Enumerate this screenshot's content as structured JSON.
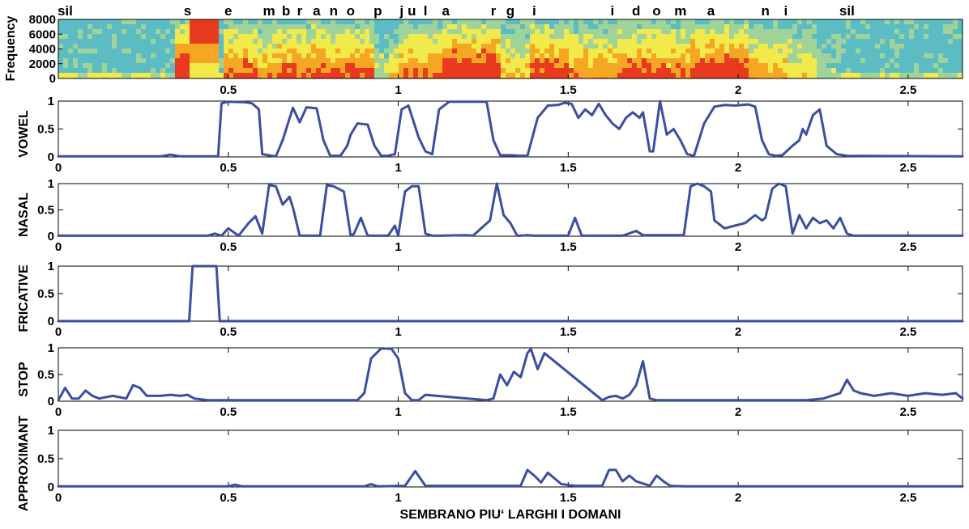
{
  "chart_data": [
    {
      "type": "heatmap",
      "ylabel": "Frequency",
      "ylim": [
        0,
        8000
      ],
      "yticks": [
        "0",
        "2000",
        "4000",
        "6000",
        "8000"
      ],
      "xlim": [
        0,
        2.66
      ],
      "xticks": [
        "0.5",
        "1",
        "1.5",
        "2",
        "2.5"
      ],
      "xtick_values": [
        0.5,
        1,
        1.5,
        2,
        2.5
      ],
      "phoneme_labels": [
        {
          "text": "sil",
          "t": 0.02
        },
        {
          "text": "s",
          "t": 0.38
        },
        {
          "text": "e",
          "t": 0.5
        },
        {
          "text": "m",
          "t": 0.62
        },
        {
          "text": "b",
          "t": 0.67
        },
        {
          "text": "r",
          "t": 0.71
        },
        {
          "text": "a",
          "t": 0.76
        },
        {
          "text": "n",
          "t": 0.81
        },
        {
          "text": "o",
          "t": 0.86
        },
        {
          "text": "p",
          "t": 0.94
        },
        {
          "text": "j",
          "t": 1.01
        },
        {
          "text": "u",
          "t": 1.04
        },
        {
          "text": "l",
          "t": 1.08
        },
        {
          "text": "a",
          "t": 1.14
        },
        {
          "text": "r",
          "t": 1.28
        },
        {
          "text": "g",
          "t": 1.33
        },
        {
          "text": "i",
          "t": 1.4
        },
        {
          "text": "i",
          "t": 1.63
        },
        {
          "text": "d",
          "t": 1.7
        },
        {
          "text": "o",
          "t": 1.76
        },
        {
          "text": "m",
          "t": 1.83
        },
        {
          "text": "a",
          "t": 1.92
        },
        {
          "text": "n",
          "t": 2.08
        },
        {
          "text": "i",
          "t": 2.14
        },
        {
          "text": "sil",
          "t": 2.32
        }
      ],
      "colors": {
        "low": "#5bbcc4",
        "mid": "#f2ea4a",
        "high": "#e83a1e"
      }
    },
    {
      "type": "line",
      "ylabel": "VOWEL",
      "ylim": [
        0,
        1
      ],
      "xlim": [
        0,
        2.66
      ],
      "yticks": [
        "0",
        "0.5",
        "1"
      ],
      "xticks": [
        "0",
        "0.5",
        "1",
        "1.5",
        "2",
        "2.5"
      ],
      "x": [
        0,
        0.3,
        0.33,
        0.36,
        0.47,
        0.48,
        0.5,
        0.55,
        0.57,
        0.59,
        0.6,
        0.64,
        0.66,
        0.69,
        0.71,
        0.73,
        0.76,
        0.78,
        0.8,
        0.83,
        0.85,
        0.86,
        0.88,
        0.91,
        0.93,
        0.95,
        0.97,
        0.99,
        1.01,
        1.03,
        1.06,
        1.08,
        1.1,
        1.12,
        1.15,
        1.2,
        1.26,
        1.28,
        1.3,
        1.33,
        1.36,
        1.38,
        1.41,
        1.44,
        1.47,
        1.49,
        1.51,
        1.53,
        1.55,
        1.57,
        1.59,
        1.61,
        1.63,
        1.65,
        1.67,
        1.69,
        1.71,
        1.72,
        1.74,
        1.75,
        1.77,
        1.79,
        1.81,
        1.83,
        1.85,
        1.87,
        1.9,
        1.93,
        1.96,
        1.99,
        2.03,
        2.05,
        2.07,
        2.09,
        2.11,
        2.13,
        2.16,
        2.18,
        2.19,
        2.2,
        2.22,
        2.24,
        2.26,
        2.29,
        2.32,
        2.66
      ],
      "values": [
        0.01,
        0.01,
        0.04,
        0.01,
        0.01,
        0.96,
        0.99,
        0.98,
        0.96,
        0.85,
        0.05,
        0.01,
        0.3,
        0.88,
        0.62,
        0.89,
        0.87,
        0.3,
        0.02,
        0.02,
        0.2,
        0.4,
        0.6,
        0.58,
        0.2,
        0.02,
        0.02,
        0.05,
        0.85,
        0.92,
        0.35,
        0.1,
        0.05,
        0.85,
        0.99,
        0.99,
        0.99,
        0.3,
        0.03,
        0.03,
        0.02,
        0.02,
        0.7,
        0.92,
        0.93,
        0.97,
        0.95,
        0.7,
        0.85,
        0.75,
        0.95,
        0.75,
        0.6,
        0.5,
        0.7,
        0.8,
        0.7,
        0.8,
        0.1,
        0.1,
        1.0,
        0.4,
        0.5,
        0.3,
        0.05,
        0.02,
        0.6,
        0.9,
        0.93,
        0.92,
        0.94,
        0.9,
        0.3,
        0.05,
        0.02,
        0.03,
        0.2,
        0.3,
        0.5,
        0.4,
        0.75,
        0.85,
        0.2,
        0.05,
        0.02,
        0.01
      ]
    },
    {
      "type": "line",
      "ylabel": "NASAL",
      "ylim": [
        0,
        1
      ],
      "xlim": [
        0,
        2.66
      ],
      "yticks": [
        "0",
        "0.5",
        "1"
      ],
      "xticks": [
        "0",
        "0.5",
        "1",
        "1.5",
        "2",
        "2.5"
      ],
      "x": [
        0,
        0.44,
        0.46,
        0.48,
        0.5,
        0.53,
        0.56,
        0.58,
        0.6,
        0.62,
        0.64,
        0.66,
        0.68,
        0.69,
        0.71,
        0.77,
        0.79,
        0.81,
        0.84,
        0.86,
        0.87,
        0.89,
        0.91,
        0.97,
        0.99,
        1.0,
        1.02,
        1.04,
        1.06,
        1.08,
        1.1,
        1.12,
        1.2,
        1.22,
        1.27,
        1.29,
        1.31,
        1.33,
        1.35,
        1.36,
        1.38,
        1.4,
        1.5,
        1.52,
        1.54,
        1.66,
        1.7,
        1.72,
        1.84,
        1.86,
        1.88,
        1.9,
        1.92,
        1.93,
        1.96,
        1.99,
        2.02,
        2.05,
        2.07,
        2.08,
        2.1,
        2.12,
        2.14,
        2.16,
        2.18,
        2.2,
        2.22,
        2.24,
        2.26,
        2.28,
        2.3,
        2.32,
        2.34,
        2.66
      ],
      "values": [
        0.01,
        0.01,
        0.05,
        0.01,
        0.15,
        0.01,
        0.25,
        0.38,
        0.05,
        0.97,
        0.95,
        0.6,
        0.75,
        0.55,
        0.01,
        0.01,
        0.97,
        0.95,
        0.85,
        0.01,
        0.05,
        0.35,
        0.01,
        0.01,
        0.2,
        0.01,
        0.85,
        0.95,
        0.95,
        0.05,
        0.01,
        0.01,
        0.02,
        0.01,
        0.3,
        1.0,
        0.4,
        0.25,
        0.01,
        0.01,
        0.02,
        0.01,
        0.01,
        0.35,
        0.01,
        0.01,
        0.1,
        0.02,
        0.02,
        0.95,
        1.0,
        0.95,
        0.85,
        0.3,
        0.15,
        0.2,
        0.25,
        0.4,
        0.3,
        0.35,
        0.9,
        1.0,
        0.95,
        0.05,
        0.4,
        0.15,
        0.35,
        0.25,
        0.3,
        0.15,
        0.35,
        0.05,
        0.01,
        0.01
      ]
    },
    {
      "type": "line",
      "ylabel": "FRICATIVE",
      "ylim": [
        0,
        1
      ],
      "xlim": [
        0,
        2.66
      ],
      "yticks": [
        "0",
        "0.5",
        "1"
      ],
      "xticks": [
        "0",
        "0.5",
        "1",
        "1.5",
        "2",
        "2.5"
      ],
      "x": [
        0,
        0.385,
        0.395,
        0.465,
        0.475,
        2.66
      ],
      "values": [
        0.0,
        0.0,
        1.0,
        1.0,
        0.0,
        0.0
      ]
    },
    {
      "type": "line",
      "ylabel": "STOP",
      "ylim": [
        0,
        1
      ],
      "xlim": [
        0,
        2.66
      ],
      "yticks": [
        "0",
        "0.5",
        "1"
      ],
      "xticks": [
        "0",
        "0.5",
        "1",
        "1.5",
        "2",
        "2.5"
      ],
      "x": [
        0,
        0.02,
        0.04,
        0.06,
        0.08,
        0.1,
        0.12,
        0.16,
        0.2,
        0.22,
        0.24,
        0.26,
        0.3,
        0.33,
        0.36,
        0.38,
        0.4,
        0.44,
        0.88,
        0.9,
        0.92,
        0.95,
        0.98,
        1.0,
        1.02,
        1.04,
        1.06,
        1.08,
        1.26,
        1.28,
        1.3,
        1.32,
        1.34,
        1.36,
        1.38,
        1.39,
        1.41,
        1.43,
        1.6,
        1.62,
        1.64,
        1.66,
        1.68,
        1.7,
        1.72,
        1.74,
        1.76,
        2.2,
        2.25,
        2.3,
        2.32,
        2.34,
        2.36,
        2.4,
        2.45,
        2.5,
        2.55,
        2.6,
        2.64,
        2.66
      ],
      "values": [
        0.02,
        0.25,
        0.05,
        0.05,
        0.2,
        0.1,
        0.05,
        0.1,
        0.05,
        0.3,
        0.25,
        0.1,
        0.1,
        0.12,
        0.1,
        0.12,
        0.05,
        0.02,
        0.02,
        0.15,
        0.8,
        0.99,
        0.98,
        0.8,
        0.15,
        0.02,
        0.02,
        0.12,
        0.02,
        0.05,
        0.5,
        0.3,
        0.55,
        0.45,
        0.9,
        0.98,
        0.6,
        0.9,
        0.02,
        0.08,
        0.1,
        0.05,
        0.12,
        0.3,
        0.75,
        0.05,
        0.02,
        0.02,
        0.05,
        0.15,
        0.4,
        0.2,
        0.15,
        0.1,
        0.15,
        0.1,
        0.15,
        0.12,
        0.15,
        0.05
      ]
    },
    {
      "type": "line",
      "ylabel": "APPROXIMANT",
      "ylim": [
        0,
        1
      ],
      "xlim": [
        0,
        2.66
      ],
      "yticks": [
        "0",
        "0.5",
        "1"
      ],
      "xticks": [
        "0",
        "0.5",
        "1",
        "1.5",
        "2",
        "2.5"
      ],
      "x": [
        0,
        0.5,
        0.52,
        0.54,
        0.9,
        0.92,
        0.94,
        1.02,
        1.05,
        1.08,
        1.36,
        1.38,
        1.4,
        1.42,
        1.44,
        1.46,
        1.48,
        1.52,
        1.56,
        1.6,
        1.62,
        1.64,
        1.66,
        1.68,
        1.7,
        1.74,
        1.76,
        1.78,
        1.8,
        1.84,
        2.66
      ],
      "values": [
        0.01,
        0.01,
        0.04,
        0.01,
        0.01,
        0.05,
        0.01,
        0.02,
        0.28,
        0.02,
        0.02,
        0.3,
        0.2,
        0.08,
        0.25,
        0.15,
        0.05,
        0.02,
        0.02,
        0.02,
        0.3,
        0.3,
        0.1,
        0.2,
        0.1,
        0.02,
        0.2,
        0.1,
        0.02,
        0.01,
        0.01
      ]
    }
  ],
  "xlabel": "SEMBRANO PIU‘ LARGHI I DOMANI"
}
